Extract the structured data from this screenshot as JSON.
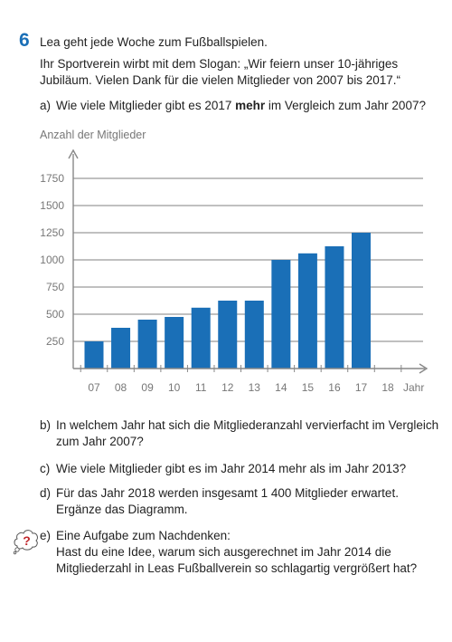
{
  "task": {
    "number": "6",
    "intro_line1": "Lea geht jede Woche zum Fußballspielen.",
    "intro_line2": "Ihr Sportverein wirbt mit dem Slogan: „Wir feiern unser 10-jähriges",
    "intro_line3": "Jubiläum. Vielen Dank für die vielen Mitglieder von 2007 bis 2017.“"
  },
  "questions": {
    "a": {
      "letter": "a)",
      "pre": "Wie viele Mitglieder gibt es 2017 ",
      "bold": "mehr",
      "post": " im Vergleich zum Jahr 2007?"
    },
    "b": {
      "letter": "b)",
      "line1": "In welchem Jahr hat sich die Mitgliederanzahl vervierfacht im Vergleich",
      "line2": "zum Jahr 2007?"
    },
    "c": {
      "letter": "c)",
      "line1": "Wie viele Mitglieder gibt es im Jahr 2014 mehr als im Jahr 2013?"
    },
    "d": {
      "letter": "d)",
      "line1": "Für das Jahr 2018 werden insgesamt 1 400 Mitglieder erwartet.",
      "line2": "Ergänze das Diagramm."
    },
    "e": {
      "letter": "e)",
      "line1": "Eine Aufgabe zum Nachdenken:",
      "line2": "Hast du eine Idee, warum sich ausgerechnet im Jahr 2014 die",
      "line3": "Mitgliederzahl in Leas Fußballverein so schlagartig vergrößert hat?"
    }
  },
  "icon": {
    "name": "question-mark-thought-icon",
    "glyph": "?"
  },
  "chart_data": {
    "type": "bar",
    "ylabel": "Anzahl der Mitglieder",
    "xlabel": "Jahr",
    "categories": [
      "07",
      "08",
      "09",
      "10",
      "11",
      "12",
      "13",
      "14",
      "15",
      "16",
      "17",
      "18"
    ],
    "values": [
      250,
      375,
      450,
      475,
      560,
      625,
      625,
      1000,
      1060,
      1125,
      1250,
      null
    ],
    "yticks": [
      250,
      500,
      750,
      1000,
      1250,
      1500,
      1750
    ],
    "ylim": [
      0,
      1900
    ],
    "grid": true,
    "bar_color": "#1a6fb7"
  },
  "colors": {
    "accent": "#1a6fb7",
    "grid": "#9a9a9a",
    "axis": "#888888",
    "tick_text": "#777777"
  }
}
